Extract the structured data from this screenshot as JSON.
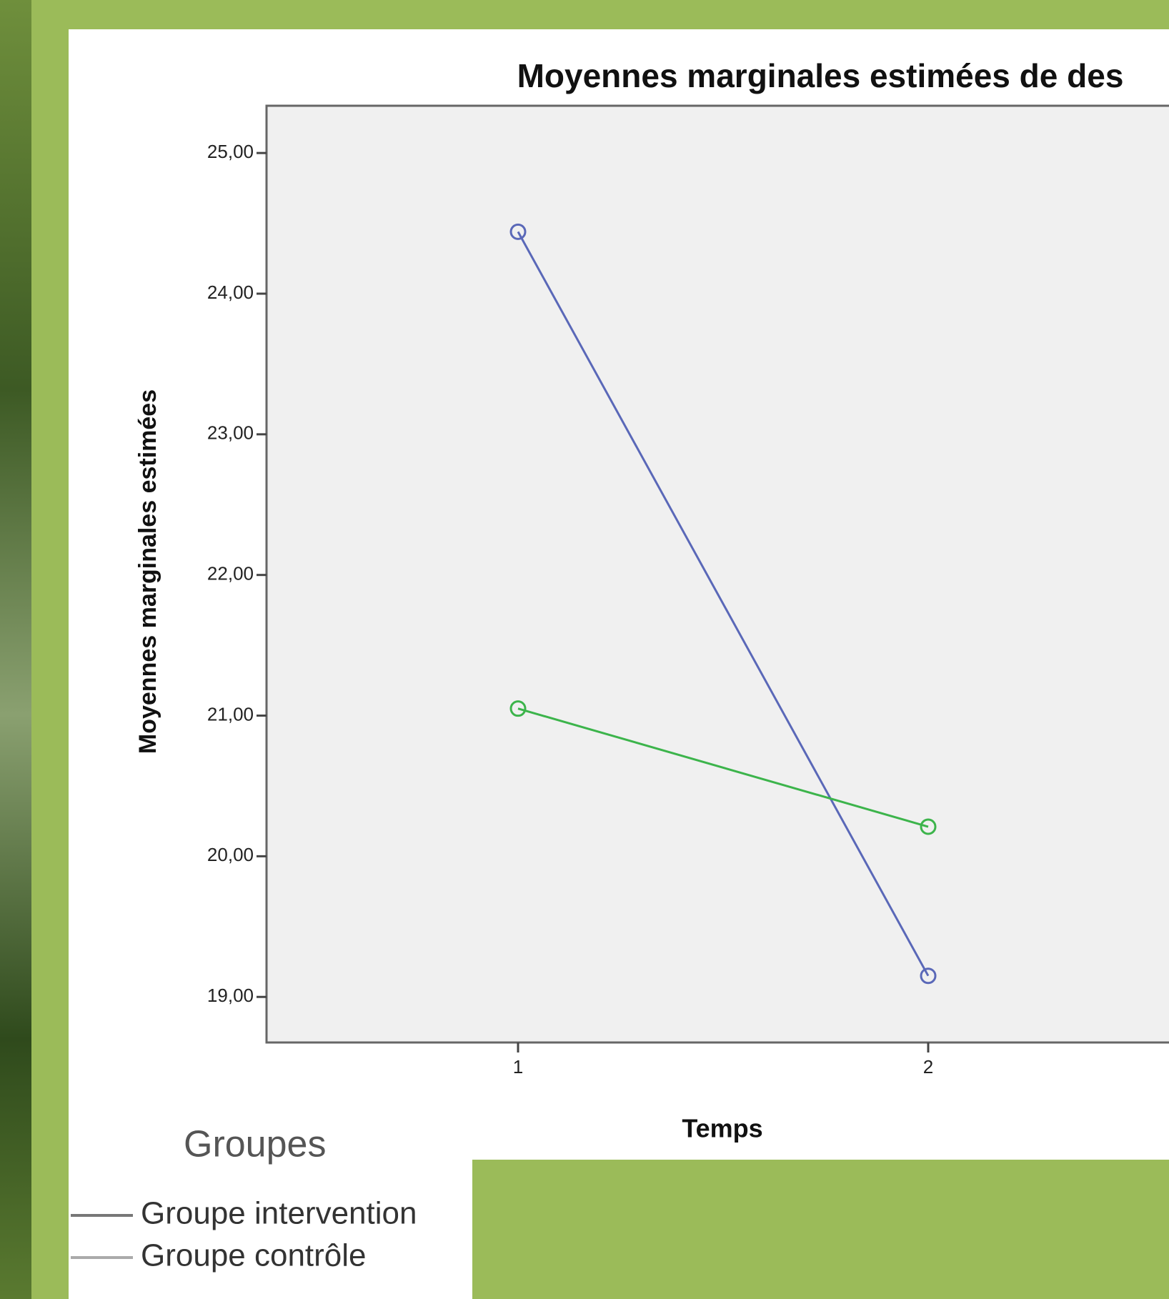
{
  "chart_data": {
    "type": "line",
    "title": "Moyennes marginales estimées de des",
    "x_label": "Temps",
    "y_label": "Moyennes marginales estimées",
    "categories": [
      "1",
      "2"
    ],
    "series": [
      {
        "name": "Groupe intervention",
        "color": "#5a68b8",
        "values": [
          24.44,
          19.15
        ]
      },
      {
        "name": "Groupe contrôle",
        "color": "#3cb44b",
        "values": [
          21.05,
          20.21
        ]
      }
    ],
    "legend_title": "Groupes",
    "ylim": [
      18.676,
      25.336
    ],
    "yticks": [
      {
        "value": 19,
        "label": "19,00"
      },
      {
        "value": 20,
        "label": "20,00"
      },
      {
        "value": 21,
        "label": "21,00"
      },
      {
        "value": 22,
        "label": "22,00"
      },
      {
        "value": 23,
        "label": "23,00"
      },
      {
        "value": 24,
        "label": "24,00"
      },
      {
        "value": 25,
        "label": "25,00"
      }
    ]
  }
}
